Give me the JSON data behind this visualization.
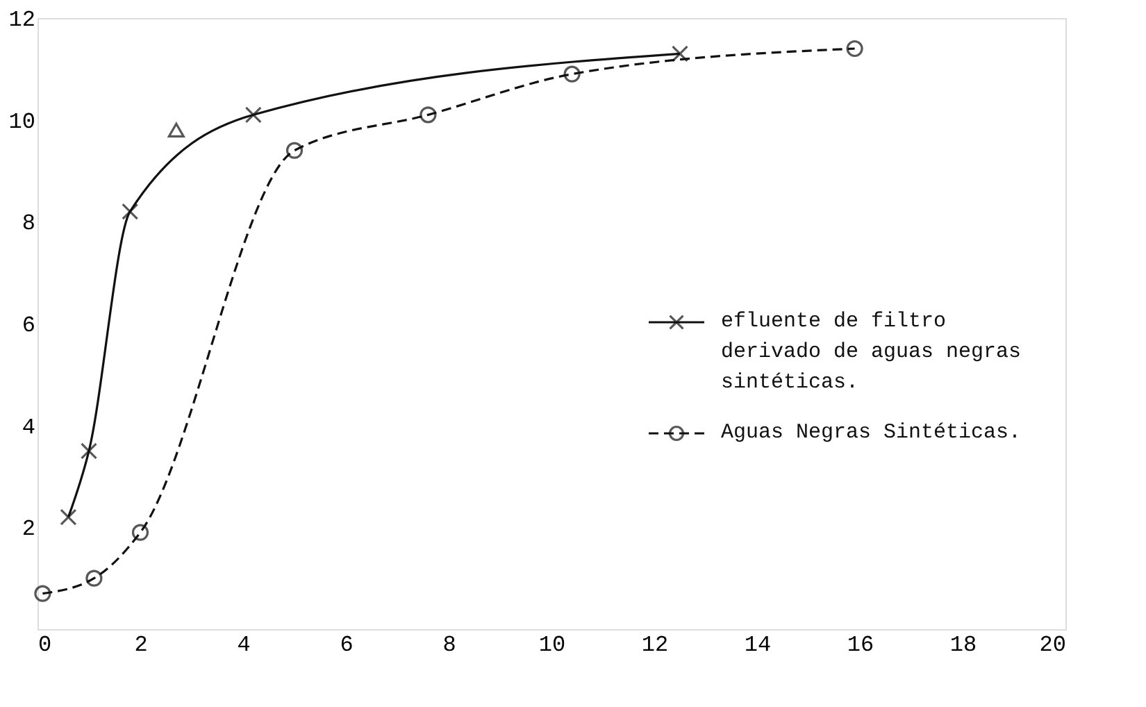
{
  "chart_data": {
    "type": "line",
    "xlim": [
      0,
      20
    ],
    "ylim": [
      0,
      12
    ],
    "xticks": [
      0,
      2,
      4,
      6,
      8,
      10,
      12,
      14,
      16,
      18,
      20
    ],
    "yticks": [
      2,
      4,
      6,
      8,
      10,
      12
    ],
    "grid": false,
    "legend": "right",
    "series": [
      {
        "name": "efluente de filtro derivado de aguas negras sintéticas.",
        "color": "#111111",
        "marker": "cross",
        "line_style": "solid",
        "x": [
          0.6,
          1.0,
          1.8,
          4.2,
          12.5
        ],
        "values": [
          2.2,
          3.5,
          8.2,
          10.1,
          11.3
        ]
      },
      {
        "name": "Aguas Negras Sintéticas.",
        "color": "#111111",
        "marker": "circle",
        "line_style": "dashed",
        "x": [
          0.1,
          1.1,
          2.0,
          5.0,
          7.6,
          10.4,
          15.9
        ],
        "values": [
          0.7,
          1.0,
          1.9,
          9.4,
          10.1,
          10.9,
          11.4
        ]
      },
      {
        "type": "scatter",
        "color": "#111111",
        "marker": "triangle",
        "x": [
          2.7
        ],
        "values": [
          9.8
        ]
      }
    ]
  }
}
